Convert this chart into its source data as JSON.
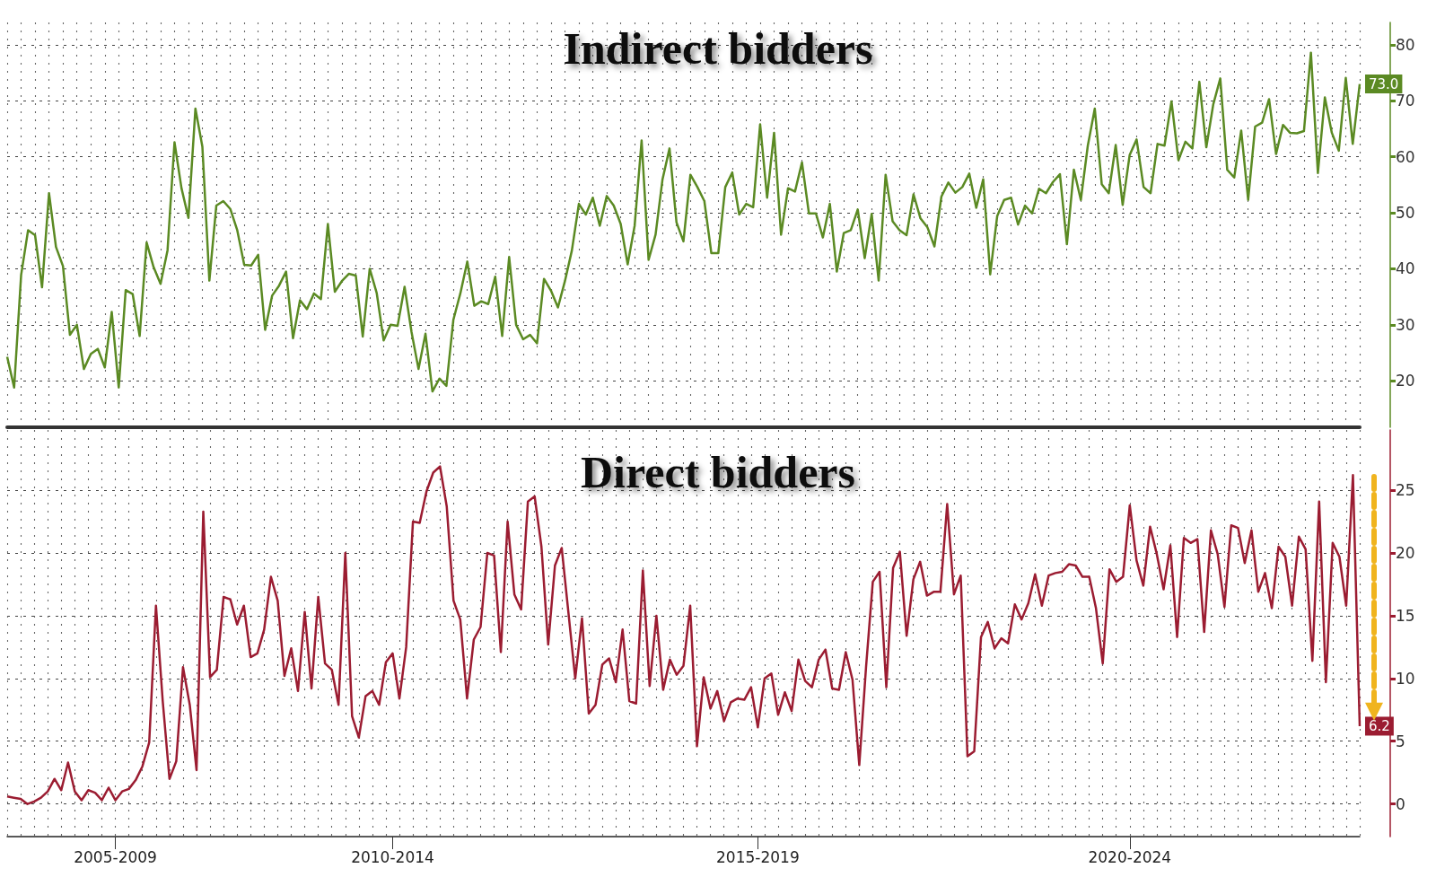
{
  "chart_data": [
    {
      "type": "line",
      "title": "Indirect bidders",
      "marker": "none",
      "grid": true,
      "tick_labels": "y",
      "categories": [
        null,
        null,
        null,
        null,
        null,
        null,
        null,
        null,
        null,
        null,
        null,
        null,
        null,
        null,
        null,
        null,
        null,
        null,
        null,
        null,
        null,
        null,
        null,
        null,
        null,
        null,
        null,
        null,
        null,
        null,
        null,
        null,
        null,
        null,
        null,
        null,
        null,
        null,
        null,
        null,
        null,
        null,
        null,
        null,
        null,
        null,
        null,
        null,
        null,
        null,
        null,
        null,
        null,
        null,
        null,
        null,
        null,
        null,
        null,
        null,
        null,
        null,
        null,
        null,
        null,
        null,
        null,
        null,
        null,
        null,
        null,
        null,
        null,
        null,
        null,
        null,
        null,
        null,
        null,
        null,
        null,
        null,
        null,
        null,
        null,
        null,
        null,
        null,
        null,
        null,
        null,
        null,
        null,
        null,
        null,
        null,
        null,
        null,
        null,
        null,
        null,
        null,
        null,
        null,
        null,
        null,
        null,
        null,
        null,
        null,
        null,
        null,
        null,
        null,
        null,
        null,
        null,
        null,
        null,
        null,
        null,
        null,
        null,
        null,
        null,
        null,
        null,
        null,
        null,
        null,
        null,
        null,
        null,
        null,
        null,
        null,
        null,
        null,
        null,
        null,
        null,
        null,
        null,
        null,
        null,
        null,
        null,
        null,
        null,
        null,
        null,
        null,
        null,
        null,
        null,
        null,
        null,
        null,
        null,
        null,
        null,
        null,
        null,
        null,
        null,
        null,
        null,
        null,
        null,
        null,
        null,
        null,
        null,
        null,
        null,
        null,
        null,
        null,
        null,
        null,
        null,
        null,
        null,
        null,
        null,
        null,
        null,
        null,
        null,
        null,
        null,
        null,
        null,
        null,
        null
      ],
      "ylim": [
        11.7,
        84
      ],
      "yticks": [
        20,
        30,
        40,
        50,
        60,
        70,
        80
      ],
      "series": [
        {
          "color": "#5b8a23",
          "values": [
            24.3,
            18.8,
            38.9,
            46.9,
            46.0,
            36.7,
            53.5,
            43.9,
            40.5,
            28.2,
            30.0,
            22.1,
            24.8,
            25.7,
            22.4,
            32.3,
            18.8,
            36.2,
            35.5,
            28.0,
            44.7,
            40.3,
            37.3,
            43.3,
            62.6,
            54.4,
            49.1,
            68.6,
            61.8,
            37.9,
            51.3,
            52.1,
            50.7,
            46.9,
            40.7,
            40.6,
            42.5,
            29.1,
            35.2,
            37.0,
            39.5,
            27.6,
            34.4,
            32.8,
            35.6,
            34.6,
            48.0,
            35.9,
            37.8,
            39.1,
            38.8,
            27.9,
            40.0,
            35.7,
            27.2,
            30.0,
            29.8,
            36.8,
            28.7,
            22.1,
            28.4,
            18.1,
            20.4,
            19.1,
            30.9,
            35.6,
            41.3,
            33.4,
            34.2,
            33.7,
            38.6,
            28.0,
            42.1,
            30.0,
            27.4,
            28.2,
            26.7,
            38.2,
            36.1,
            33.1,
            37.8,
            43.3,
            51.6,
            49.7,
            52.7,
            47.7,
            53.0,
            51.3,
            48.0,
            40.8,
            47.7,
            62.9,
            41.6,
            46.1,
            56.0,
            61.5,
            48.3,
            44.9,
            56.8,
            54.6,
            52.1,
            42.8,
            42.8,
            54.6,
            57.2,
            49.7,
            51.6,
            51.0,
            65.8,
            52.7,
            64.3,
            46.1,
            54.4,
            53.8,
            59.0,
            49.9,
            49.9,
            45.6,
            51.6,
            39.5,
            46.4,
            46.9,
            50.6,
            41.9,
            49.8,
            37.9,
            56.8,
            48.5,
            46.9,
            46.0,
            53.3,
            49.0,
            47.4,
            44.0,
            52.9,
            55.4,
            53.6,
            54.6,
            57.0,
            50.9,
            56.0,
            39.0,
            49.4,
            52.3,
            52.7,
            47.9,
            51.3,
            49.9,
            54.3,
            53.5,
            55.5,
            56.9,
            44.4,
            57.7,
            52.3,
            62.0,
            68.6,
            55.1,
            53.5,
            62.1,
            51.4,
            60.3,
            63.1,
            54.6,
            53.5,
            62.3,
            62.0,
            69.9,
            59.4,
            62.7,
            61.5,
            73.4,
            61.7,
            69.4,
            74.0,
            57.7,
            56.3,
            64.7,
            52.3,
            65.4,
            66.1,
            70.3,
            60.5,
            65.7,
            64.3,
            64.2,
            64.6,
            78.6,
            57.1,
            70.6,
            64.3,
            61.1,
            74.1,
            62.3,
            73.0
          ],
          "value_labels": [
            null,
            null,
            null,
            null,
            null,
            null,
            null,
            null,
            null,
            null,
            null,
            null,
            null,
            null,
            null,
            null,
            null,
            null,
            null,
            null,
            null,
            null,
            null,
            null,
            null,
            null,
            null,
            null,
            null,
            null,
            null,
            null,
            null,
            null,
            null,
            null,
            null,
            null,
            null,
            null,
            null,
            null,
            null,
            null,
            null,
            null,
            null,
            null,
            null,
            null,
            null,
            null,
            null,
            null,
            null,
            null,
            null,
            null,
            null,
            null,
            null,
            null,
            null,
            null,
            null,
            null,
            null,
            null,
            null,
            null,
            null,
            null,
            null,
            null,
            null,
            null,
            null,
            null,
            null,
            null,
            null,
            null,
            null,
            null,
            null,
            null,
            null,
            null,
            null,
            null,
            null,
            null,
            null,
            null,
            null,
            null,
            null,
            null,
            null,
            null,
            null,
            null,
            null,
            null,
            null,
            null,
            null,
            null,
            null,
            null,
            null,
            null,
            null,
            null,
            null,
            null,
            null,
            null,
            null,
            null,
            null,
            null,
            null,
            null,
            null,
            null,
            null,
            null,
            null,
            null,
            null,
            null,
            null,
            null,
            null,
            null,
            null,
            null,
            null,
            null,
            null,
            null,
            null,
            null,
            null,
            null,
            null,
            null,
            null,
            null,
            null,
            null,
            null,
            null,
            null,
            null,
            null,
            null,
            null,
            null,
            null,
            null,
            null,
            null,
            null,
            null,
            null,
            null,
            null,
            null,
            null,
            null,
            null,
            null,
            null,
            null,
            null,
            null,
            null,
            null,
            null,
            null,
            null,
            null,
            null,
            null,
            null,
            null,
            null,
            null,
            null,
            null,
            null,
            null,
            "73.0"
          ]
        }
      ]
    },
    {
      "type": "line",
      "title": "Direct bidders",
      "marker": "none",
      "grid": true,
      "categories": [
        null,
        null,
        null,
        null,
        null,
        null,
        null,
        null,
        null,
        null,
        null,
        null,
        null,
        null,
        null,
        null,
        "2005-2009",
        null,
        null,
        null,
        null,
        null,
        null,
        null,
        null,
        null,
        null,
        null,
        null,
        null,
        null,
        null,
        null,
        null,
        null,
        null,
        null,
        null,
        null,
        null,
        null,
        null,
        null,
        null,
        null,
        null,
        null,
        null,
        null,
        null,
        null,
        null,
        null,
        null,
        null,
        null,
        null,
        "2010-2014",
        null,
        null,
        null,
        null,
        null,
        null,
        null,
        null,
        null,
        null,
        null,
        null,
        null,
        null,
        null,
        null,
        null,
        null,
        null,
        null,
        null,
        null,
        null,
        null,
        null,
        null,
        null,
        null,
        null,
        null,
        null,
        null,
        null,
        null,
        null,
        null,
        null,
        null,
        null,
        null,
        null,
        null,
        null,
        null,
        null,
        null,
        null,
        null,
        null,
        null,
        null,
        null,
        null,
        "2015-2019",
        null,
        null,
        null,
        null,
        null,
        null,
        null,
        null,
        null,
        null,
        null,
        null,
        null,
        null,
        null,
        null,
        null,
        null,
        null,
        null,
        null,
        null,
        null,
        null,
        null,
        null,
        null,
        null,
        null,
        null,
        null,
        null,
        null,
        null,
        null,
        null,
        null,
        null,
        null,
        null,
        null,
        null,
        null,
        null,
        null,
        null,
        null,
        null,
        null,
        null,
        null,
        null,
        null,
        null,
        "2020-2024",
        null,
        null,
        null,
        null,
        null,
        null,
        null,
        null,
        null,
        null,
        null,
        null,
        null,
        null,
        null,
        null,
        null,
        null,
        null,
        null,
        null,
        null,
        null,
        null,
        null,
        null,
        null,
        null,
        null,
        null,
        null,
        null,
        null,
        null
      ],
      "ylim": [
        -2.6,
        29.8
      ],
      "yticks": [
        0,
        5,
        10,
        15,
        20,
        25
      ],
      "series": [
        {
          "color": "#9b1c31",
          "values": [
            0.6,
            0.5,
            0.4,
            0.0,
            0.2,
            0.5,
            1.0,
            2.0,
            1.1,
            3.3,
            1.0,
            0.3,
            1.1,
            0.9,
            0.3,
            1.3,
            0.3,
            1.0,
            1.2,
            1.9,
            3.0,
            4.9,
            15.8,
            8.2,
            2.0,
            3.4,
            10.9,
            7.9,
            2.7,
            23.3,
            10.1,
            10.7,
            16.5,
            16.3,
            14.3,
            15.8,
            11.7,
            12.0,
            13.9,
            18.1,
            16.2,
            10.2,
            12.4,
            9.0,
            15.3,
            9.2,
            16.5,
            11.2,
            10.7,
            7.9,
            20.0,
            7.0,
            5.3,
            8.6,
            9.0,
            7.9,
            11.3,
            12.0,
            8.4,
            12.5,
            22.5,
            22.4,
            24.9,
            26.4,
            26.9,
            23.7,
            16.2,
            14.7,
            8.4,
            13.1,
            14.1,
            20.0,
            19.8,
            12.1,
            22.5,
            16.7,
            15.5,
            24.1,
            24.5,
            20.5,
            12.7,
            19.0,
            20.4,
            15.2,
            10.0,
            14.8,
            7.2,
            7.9,
            11.1,
            11.6,
            9.7,
            13.9,
            8.2,
            8.0,
            18.6,
            9.4,
            15.0,
            9.1,
            11.5,
            10.3,
            11.0,
            15.8,
            4.6,
            10.1,
            7.6,
            9.0,
            6.6,
            8.1,
            8.4,
            8.3,
            9.3,
            6.1,
            10.0,
            10.4,
            7.1,
            8.9,
            7.4,
            11.5,
            9.8,
            9.3,
            11.5,
            12.3,
            9.2,
            9.1,
            12.1,
            9.9,
            3.1,
            10.9,
            17.7,
            18.5,
            9.3,
            18.8,
            20.1,
            13.4,
            17.9,
            19.3,
            16.6,
            16.9,
            16.9,
            23.9,
            16.7,
            18.2,
            3.8,
            4.2,
            13.3,
            14.5,
            12.4,
            13.2,
            12.8,
            15.9,
            14.7,
            16.0,
            18.3,
            15.8,
            18.2,
            18.4,
            18.5,
            19.1,
            19.0,
            18.1,
            18.1,
            15.6,
            11.2,
            18.7,
            17.7,
            18.1,
            23.8,
            19.4,
            17.4,
            22.1,
            19.9,
            17.1,
            20.6,
            13.3,
            21.2,
            20.8,
            21.1,
            13.7,
            21.8,
            19.9,
            15.7,
            22.2,
            22.0,
            19.2,
            21.8,
            16.9,
            18.4,
            15.6,
            20.5,
            19.7,
            15.8,
            21.3,
            20.3,
            11.4,
            24.1,
            9.7,
            20.8,
            19.7,
            15.8,
            26.2,
            6.2
          ],
          "value_labels": [
            null,
            null,
            null,
            null,
            null,
            null,
            null,
            null,
            null,
            null,
            null,
            null,
            null,
            null,
            null,
            null,
            null,
            null,
            null,
            null,
            null,
            null,
            null,
            null,
            null,
            null,
            null,
            null,
            null,
            null,
            null,
            null,
            null,
            null,
            null,
            null,
            null,
            null,
            null,
            null,
            null,
            null,
            null,
            null,
            null,
            null,
            null,
            null,
            null,
            null,
            null,
            null,
            null,
            null,
            null,
            null,
            null,
            null,
            null,
            null,
            null,
            null,
            null,
            null,
            null,
            null,
            null,
            null,
            null,
            null,
            null,
            null,
            null,
            null,
            null,
            null,
            null,
            null,
            null,
            null,
            null,
            null,
            null,
            null,
            null,
            null,
            null,
            null,
            null,
            null,
            null,
            null,
            null,
            null,
            null,
            null,
            null,
            null,
            null,
            null,
            null,
            null,
            null,
            null,
            null,
            null,
            null,
            null,
            null,
            null,
            null,
            null,
            null,
            null,
            null,
            null,
            null,
            null,
            null,
            null,
            null,
            null,
            null,
            null,
            null,
            null,
            null,
            null,
            null,
            null,
            null,
            null,
            null,
            null,
            null,
            null,
            null,
            null,
            null,
            null,
            null,
            null,
            null,
            null,
            null,
            null,
            null,
            null,
            null,
            null,
            null,
            null,
            null,
            null,
            null,
            null,
            null,
            null,
            null,
            null,
            null,
            null,
            null,
            null,
            null,
            null,
            null,
            null,
            null,
            null,
            null,
            null,
            null,
            null,
            null,
            null,
            null,
            null,
            null,
            null,
            null,
            null,
            null,
            null,
            null,
            null,
            null,
            null,
            null,
            null,
            null,
            null,
            null,
            null,
            null,
            null,
            null,
            null,
            null,
            null,
            "6.2"
          ]
        }
      ]
    }
  ]
}
